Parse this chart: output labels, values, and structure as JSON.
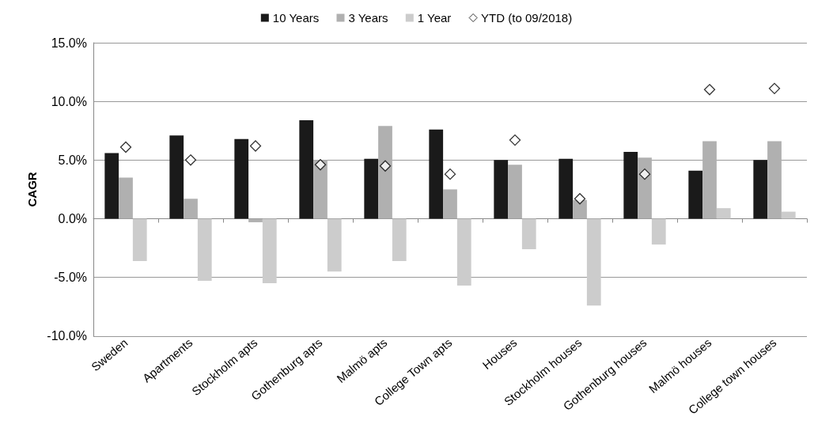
{
  "chart_data": {
    "type": "bar",
    "ylabel": "CAGR",
    "categories": [
      "Sweden",
      "Apartments",
      "Stockholm apts",
      "Gothenburg apts",
      "Malmö apts",
      "College Town apts",
      "Houses",
      "Stockholm houses",
      "Gothenburg houses",
      "Malmö houses",
      "College town houses"
    ],
    "series": [
      {
        "name": "10 Years",
        "color": "#1a1a1a",
        "values": [
          5.6,
          7.1,
          6.8,
          8.4,
          5.1,
          7.6,
          5.0,
          5.1,
          5.7,
          4.1,
          5.0
        ]
      },
      {
        "name": "3 Years",
        "color": "#b0b0b0",
        "values": [
          3.5,
          1.7,
          -0.3,
          5.0,
          7.9,
          2.5,
          4.6,
          1.6,
          5.2,
          6.6,
          6.6
        ]
      },
      {
        "name": "1 Year",
        "color": "#cccccc",
        "values": [
          -3.6,
          -5.3,
          -5.5,
          -4.5,
          -3.6,
          -5.7,
          -2.6,
          -7.4,
          -2.2,
          0.9,
          0.6
        ]
      },
      {
        "name": "YTD (to 09/2018)",
        "type": "scatter",
        "color": "#000000",
        "marker": "diamond",
        "x": [
          "Sweden",
          "Apartments",
          "Stockholm apts",
          "Gothenburg apts",
          "Malmö apts",
          "College Town apts",
          "Houses",
          "Stockholm houses",
          "Gothenburg houses",
          "Malmö houses",
          "College town houses"
        ],
        "values": [
          6.1,
          5.0,
          6.2,
          4.6,
          4.5,
          3.8,
          6.7,
          1.7,
          3.8,
          11.0,
          11.1
        ]
      }
    ],
    "ylim": [
      -10,
      15
    ],
    "yticks": [
      {
        "value": -10,
        "label": "-10.0%"
      },
      {
        "value": -5,
        "label": "-5.0%"
      },
      {
        "value": 0,
        "label": "0.0%"
      },
      {
        "value": 5,
        "label": "5.0%"
      },
      {
        "value": 10,
        "label": "10.0%"
      },
      {
        "value": 15,
        "label": "15.0%"
      }
    ],
    "grid": "y",
    "legend": "top"
  }
}
